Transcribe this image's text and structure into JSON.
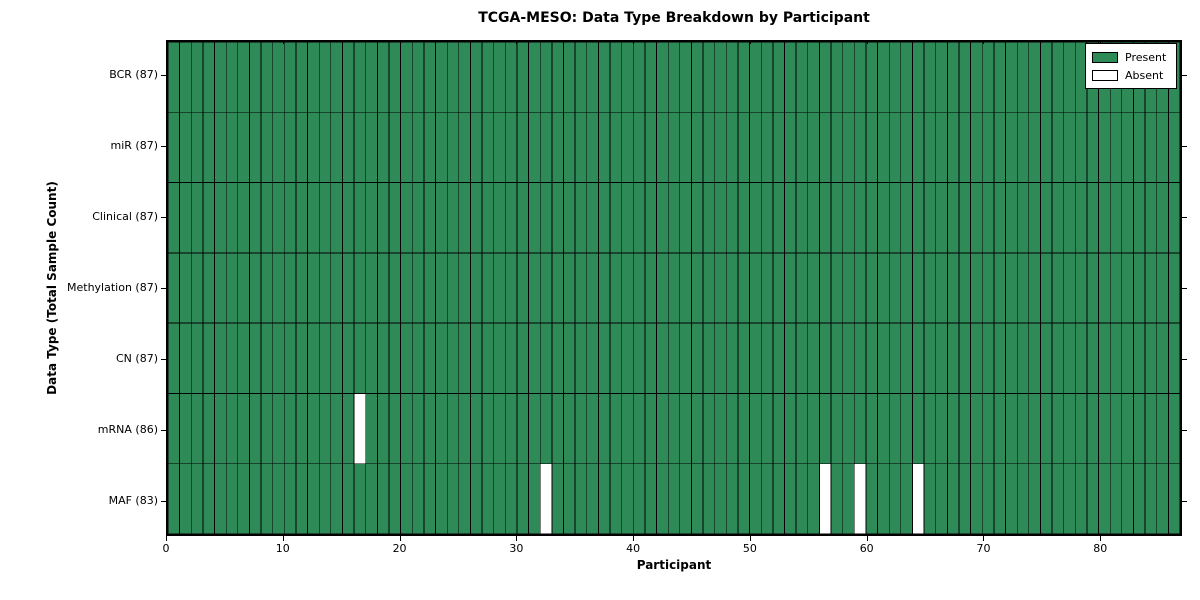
{
  "chart_data": {
    "type": "heatmap",
    "title": "TCGA-MESO: Data Type Breakdown by Participant",
    "xlabel": "Participant",
    "ylabel": "Data Type (Total Sample Count)",
    "n_participants": 87,
    "xlim": [
      0,
      87
    ],
    "x_ticks": [
      0,
      10,
      20,
      30,
      40,
      50,
      60,
      70,
      80
    ],
    "grid": "on",
    "legend_position": "upper right",
    "legend": [
      {
        "label": "Present",
        "color": "#2e8b57"
      },
      {
        "label": "Absent",
        "color": "#ffffff"
      }
    ],
    "rows": [
      {
        "name": "BCR",
        "label": "BCR (87)",
        "total": 87,
        "absent_participants": []
      },
      {
        "name": "miR",
        "label": "miR (87)",
        "total": 87,
        "absent_participants": []
      },
      {
        "name": "Clinical",
        "label": "Clinical (87)",
        "total": 87,
        "absent_participants": []
      },
      {
        "name": "Methylation",
        "label": "Methylation (87)",
        "total": 87,
        "absent_participants": []
      },
      {
        "name": "CN",
        "label": "CN (87)",
        "total": 87,
        "absent_participants": []
      },
      {
        "name": "mRNA",
        "label": "mRNA (86)",
        "total": 86,
        "absent_participants": [
          16
        ]
      },
      {
        "name": "MAF",
        "label": "MAF (83)",
        "total": 83,
        "absent_participants": [
          32,
          56,
          59,
          64
        ]
      }
    ],
    "colors": {
      "present": "#2e8b57",
      "absent": "#ffffff",
      "grid_line": "#000000",
      "frame": "#000000"
    }
  }
}
